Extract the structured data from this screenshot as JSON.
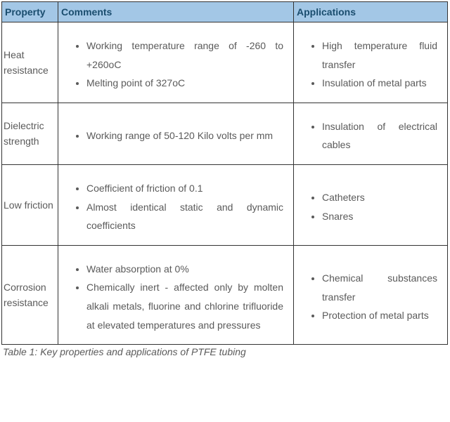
{
  "headers": {
    "property": "Property",
    "comments": "Comments",
    "applications": "Applications"
  },
  "rows": [
    {
      "property": "Heat resistance",
      "comments": [
        "Working temperature range of -260 to +260oC",
        "Melting point of 327oC"
      ],
      "applications": [
        "High temperature fluid transfer",
        "Insulation of metal parts"
      ]
    },
    {
      "property": "Dielectric strength",
      "comments": [
        "Working range of 50-120 Kilo volts per mm"
      ],
      "applications": [
        "Insulation of electrical cables"
      ]
    },
    {
      "property": "Low friction",
      "comments": [
        "Coefficient of friction of 0.1",
        "Almost identical static and dynamic coefficients"
      ],
      "applications": [
        "Catheters",
        "Snares"
      ]
    },
    {
      "property": "Corrosion resistance",
      "comments": [
        "Water absorption at 0%",
        "Chemically inert - affected only by molten alkali metals, fluorine and chlorine trifluoride at elevated temperatures and pressures"
      ],
      "applications": [
        "Chemical substances transfer",
        "Protection of metal parts"
      ]
    }
  ],
  "caption": "Table 1: Key properties and applications of PTFE tubing",
  "colors": {
    "header_bg": "#a3c7e6",
    "header_text": "#1a4d6e",
    "border": "#333333",
    "body_text": "#5a5a5a"
  }
}
